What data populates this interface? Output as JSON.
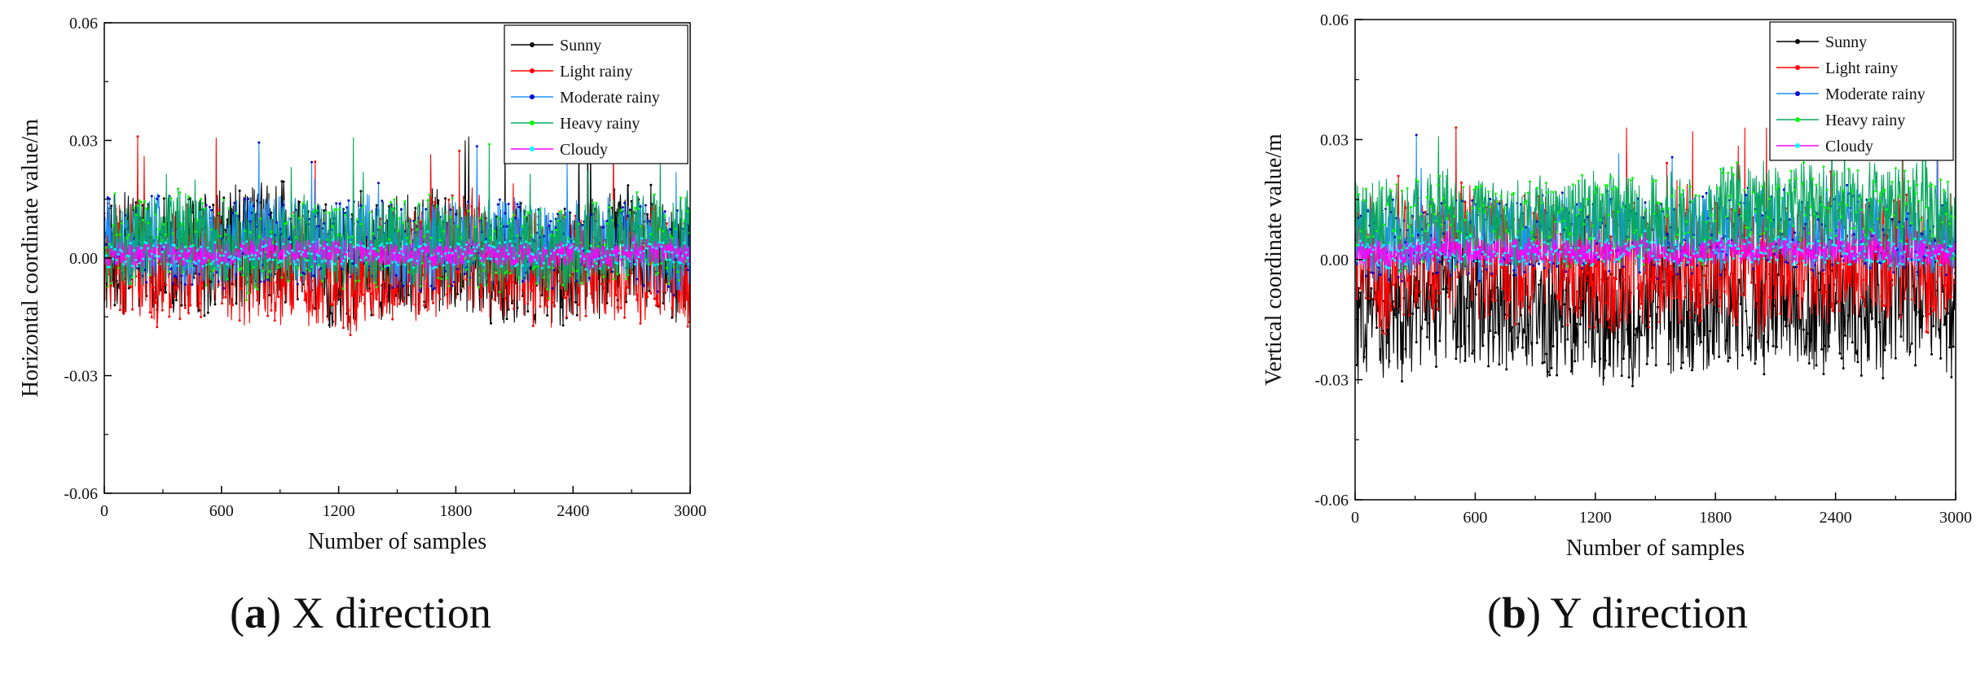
{
  "chart_data": [
    {
      "type": "line",
      "caption": {
        "letter": "a",
        "text": "X direction"
      },
      "xlabel": "Number of samples",
      "ylabel": "Horizontal coordinate value/m",
      "xlim": [
        0,
        3000
      ],
      "ylim": [
        -0.06,
        0.06
      ],
      "x_ticks": [
        "0",
        "600",
        "1200",
        "1800",
        "2400",
        "3000"
      ],
      "y_ticks": [
        "-0.06",
        "-0.03",
        "0.00",
        "0.03",
        "0.06"
      ],
      "grid": false,
      "legend_position": "top-right",
      "series": [
        {
          "name": "Sunny",
          "color": "#000000",
          "marker_color": "#000000",
          "mean": 0.0,
          "amplitude": 0.028,
          "min": -0.032,
          "max": 0.031
        },
        {
          "name": "Light rainy",
          "color": "#ff0000",
          "marker_color": "#ff0000",
          "mean": -0.002,
          "amplitude": 0.026,
          "min": -0.031,
          "max": 0.031
        },
        {
          "name": "Moderate rainy",
          "color": "#1e90ff",
          "marker_color": "#0000cc",
          "mean": 0.004,
          "amplitude": 0.02,
          "min": -0.017,
          "max": 0.03
        },
        {
          "name": "Heavy rainy",
          "color": "#0aa860",
          "marker_color": "#00ff00",
          "mean": 0.003,
          "amplitude": 0.02,
          "min": -0.02,
          "max": 0.031
        },
        {
          "name": "Cloudy",
          "color": "#ff00ff",
          "marker_color": "#00ffff",
          "mean": 0.001,
          "amplitude": 0.006,
          "min": -0.007,
          "max": 0.009
        }
      ]
    },
    {
      "type": "line",
      "caption": {
        "letter": "b",
        "text": "Y direction"
      },
      "xlabel": "Number of samples",
      "ylabel": "Vertical coordinate value/m",
      "xlim": [
        0,
        3000
      ],
      "ylim": [
        -0.06,
        0.06
      ],
      "x_ticks": [
        "0",
        "600",
        "1200",
        "1800",
        "2400",
        "3000"
      ],
      "y_ticks": [
        "-0.06",
        "-0.03",
        "0.00",
        "0.03",
        "0.06"
      ],
      "grid": false,
      "legend_position": "top-right",
      "series": [
        {
          "name": "Sunny",
          "color": "#000000",
          "marker_color": "#000000",
          "mean": -0.012,
          "amplitude": 0.03,
          "min": -0.043,
          "max": 0.01
        },
        {
          "name": "Light rainy",
          "color": "#ff0000",
          "marker_color": "#ff0000",
          "mean": 0.0,
          "amplitude": 0.028,
          "min": -0.03,
          "max": 0.033
        },
        {
          "name": "Moderate rainy",
          "color": "#1e90ff",
          "marker_color": "#0000cc",
          "mean": 0.006,
          "amplitude": 0.018,
          "min": -0.01,
          "max": 0.052
        },
        {
          "name": "Heavy rainy",
          "color": "#0aa860",
          "marker_color": "#00ff00",
          "mean": 0.01,
          "amplitude": 0.02,
          "min": -0.01,
          "max": 0.041
        },
        {
          "name": "Cloudy",
          "color": "#ff00ff",
          "marker_color": "#00ffff",
          "mean": 0.002,
          "amplitude": 0.006,
          "min": -0.006,
          "max": 0.01
        }
      ]
    }
  ]
}
